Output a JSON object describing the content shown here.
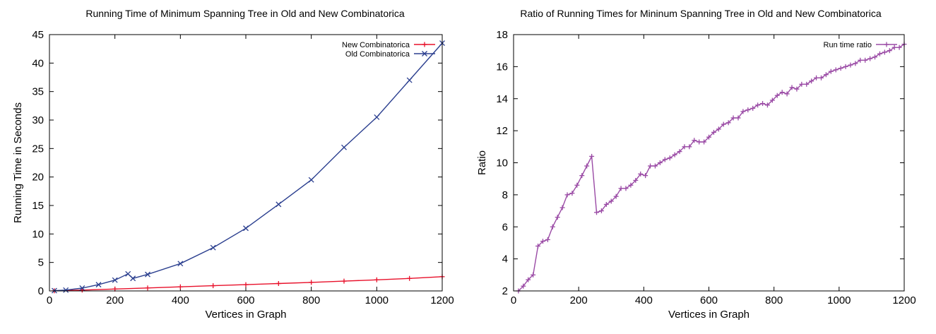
{
  "chart_data": [
    {
      "type": "line",
      "title": "Running Time of Minimum Spanning Tree in Old and New Combinatorica",
      "xlabel": "Vertices in Graph",
      "ylabel": "Running Time in Seconds",
      "xlim": [
        0,
        1200
      ],
      "ylim": [
        0,
        45
      ],
      "xticks": [
        0,
        200,
        400,
        600,
        800,
        1000,
        1200
      ],
      "yticks": [
        0,
        5,
        10,
        15,
        20,
        25,
        30,
        35,
        40,
        45
      ],
      "legend_position": "top-right",
      "grid": false,
      "series": [
        {
          "name": "New Combinatorica",
          "color": "#e8102a",
          "marker": "plus",
          "points": [
            [
              15,
              0.02
            ],
            [
              100,
              0.15
            ],
            [
              200,
              0.33
            ],
            [
              300,
              0.52
            ],
            [
              400,
              0.72
            ],
            [
              500,
              0.92
            ],
            [
              600,
              1.1
            ],
            [
              700,
              1.3
            ],
            [
              800,
              1.5
            ],
            [
              900,
              1.72
            ],
            [
              1000,
              1.95
            ],
            [
              1100,
              2.2
            ],
            [
              1200,
              2.5
            ]
          ]
        },
        {
          "name": "Old Combinatorica",
          "color": "#2b3f8f",
          "marker": "x",
          "points": [
            [
              15,
              0.05
            ],
            [
              50,
              0.15
            ],
            [
              100,
              0.5
            ],
            [
              150,
              1.1
            ],
            [
              200,
              1.9
            ],
            [
              240,
              3.0
            ],
            [
              255,
              2.2
            ],
            [
              300,
              2.9
            ],
            [
              400,
              4.8
            ],
            [
              500,
              7.6
            ],
            [
              600,
              11.0
            ],
            [
              700,
              15.2
            ],
            [
              800,
              19.5
            ],
            [
              900,
              25.2
            ],
            [
              1000,
              30.5
            ],
            [
              1100,
              37.0
            ],
            [
              1200,
              43.5
            ]
          ]
        }
      ]
    },
    {
      "type": "line",
      "title": "Ratio of Running Times for Mininum Spanning Tree in Old and New Combinatorica",
      "xlabel": "Vertices in Graph",
      "ylabel": "Ratio",
      "xlim": [
        0,
        1200
      ],
      "ylim": [
        2,
        18
      ],
      "xticks": [
        0,
        200,
        400,
        600,
        800,
        1000,
        1200
      ],
      "yticks": [
        2,
        4,
        6,
        8,
        10,
        12,
        14,
        16,
        18
      ],
      "legend_position": "top-right",
      "grid": false,
      "series": [
        {
          "name": "Run time ratio",
          "color": "#9a4aa5",
          "marker": "plus",
          "points": [
            [
              15,
              2.0
            ],
            [
              30,
              2.3
            ],
            [
              45,
              2.7
            ],
            [
              60,
              3.0
            ],
            [
              75,
              4.8
            ],
            [
              90,
              5.1
            ],
            [
              105,
              5.2
            ],
            [
              120,
              6.0
            ],
            [
              135,
              6.6
            ],
            [
              150,
              7.2
            ],
            [
              165,
              8.0
            ],
            [
              180,
              8.1
            ],
            [
              195,
              8.6
            ],
            [
              210,
              9.2
            ],
            [
              225,
              9.8
            ],
            [
              240,
              10.4
            ],
            [
              255,
              6.9
            ],
            [
              270,
              7.0
            ],
            [
              285,
              7.4
            ],
            [
              300,
              7.6
            ],
            [
              315,
              7.9
            ],
            [
              330,
              8.4
            ],
            [
              345,
              8.4
            ],
            [
              360,
              8.6
            ],
            [
              375,
              8.9
            ],
            [
              390,
              9.3
            ],
            [
              405,
              9.2
            ],
            [
              420,
              9.8
            ],
            [
              435,
              9.8
            ],
            [
              450,
              10.0
            ],
            [
              465,
              10.2
            ],
            [
              480,
              10.3
            ],
            [
              495,
              10.5
            ],
            [
              510,
              10.7
            ],
            [
              525,
              11.0
            ],
            [
              540,
              11.0
            ],
            [
              555,
              11.4
            ],
            [
              570,
              11.3
            ],
            [
              585,
              11.3
            ],
            [
              600,
              11.6
            ],
            [
              615,
              11.9
            ],
            [
              630,
              12.1
            ],
            [
              645,
              12.4
            ],
            [
              660,
              12.5
            ],
            [
              675,
              12.8
            ],
            [
              690,
              12.8
            ],
            [
              705,
              13.2
            ],
            [
              720,
              13.3
            ],
            [
              735,
              13.4
            ],
            [
              750,
              13.6
            ],
            [
              765,
              13.7
            ],
            [
              780,
              13.6
            ],
            [
              795,
              13.9
            ],
            [
              810,
              14.2
            ],
            [
              825,
              14.4
            ],
            [
              840,
              14.3
            ],
            [
              855,
              14.7
            ],
            [
              870,
              14.6
            ],
            [
              885,
              14.9
            ],
            [
              900,
              14.9
            ],
            [
              915,
              15.1
            ],
            [
              930,
              15.3
            ],
            [
              945,
              15.3
            ],
            [
              960,
              15.5
            ],
            [
              975,
              15.7
            ],
            [
              990,
              15.8
            ],
            [
              1005,
              15.9
            ],
            [
              1020,
              16.0
            ],
            [
              1035,
              16.1
            ],
            [
              1050,
              16.2
            ],
            [
              1065,
              16.4
            ],
            [
              1080,
              16.4
            ],
            [
              1095,
              16.5
            ],
            [
              1110,
              16.6
            ],
            [
              1125,
              16.8
            ],
            [
              1140,
              16.9
            ],
            [
              1155,
              17.0
            ],
            [
              1170,
              17.2
            ],
            [
              1185,
              17.2
            ],
            [
              1200,
              17.4
            ]
          ]
        }
      ]
    }
  ]
}
